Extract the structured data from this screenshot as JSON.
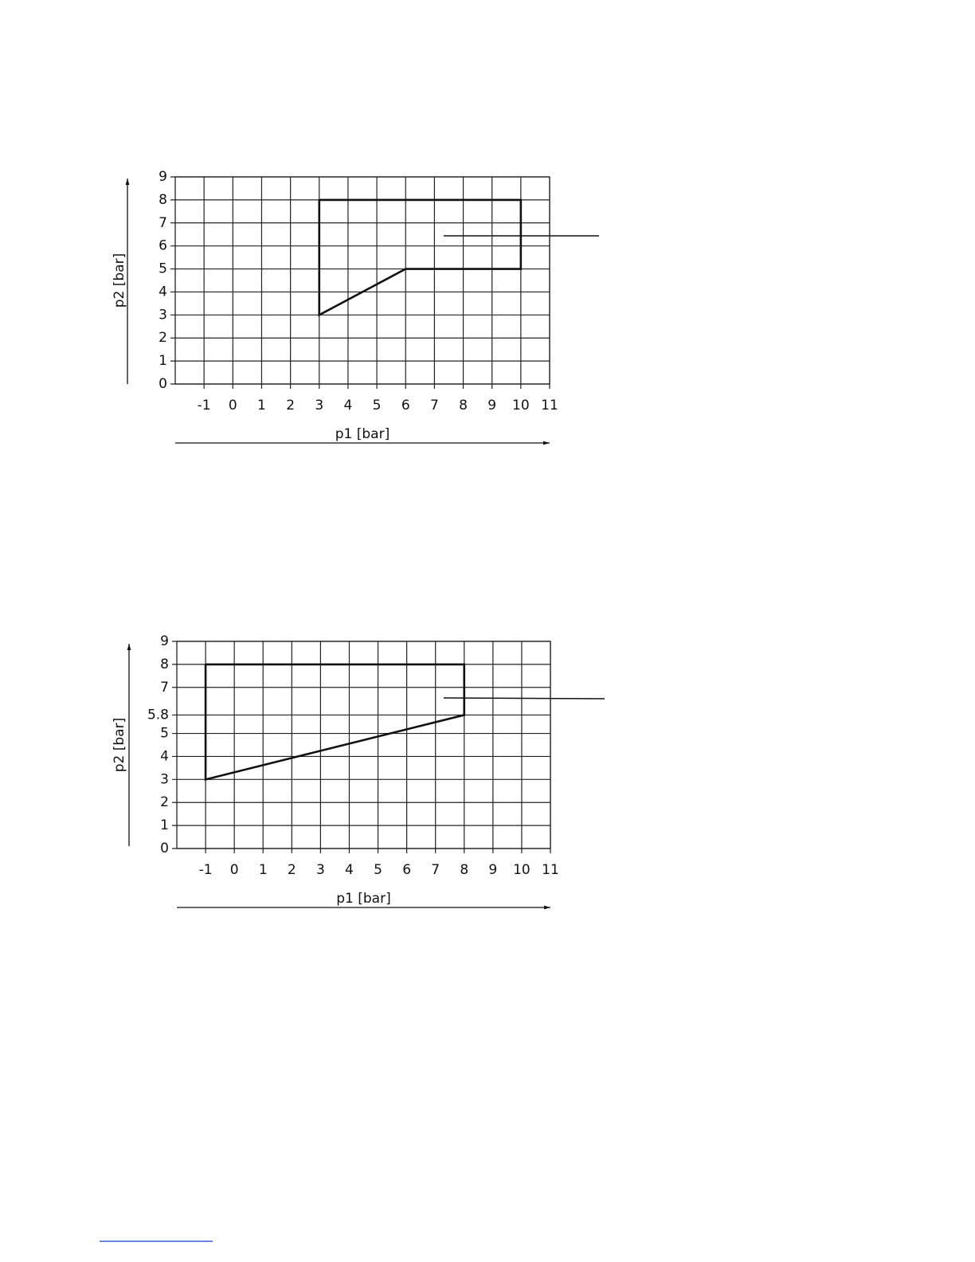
{
  "chart_data": [
    {
      "type": "line",
      "xlabel": "p1 [bar]",
      "ylabel": "p2 [bar]",
      "x": [
        3,
        10,
        10,
        6,
        3,
        3
      ],
      "values": [
        8,
        8,
        5,
        5,
        3,
        8
      ],
      "color": "#111111",
      "xlim": [
        -2,
        11
      ],
      "xticks": [
        -1,
        0,
        1,
        2,
        3,
        4,
        5,
        6,
        7,
        8,
        9,
        10,
        11
      ],
      "ylim": [
        0,
        9
      ],
      "yticks": [
        0,
        1,
        2,
        3,
        4,
        5,
        6,
        7,
        8,
        9
      ],
      "grid": true
    },
    {
      "type": "line",
      "xlabel": "p1 [bar]",
      "ylabel": "p2 [bar]",
      "x": [
        -1,
        8,
        8,
        -1,
        -1
      ],
      "values": [
        8,
        8,
        5.8,
        3,
        8
      ],
      "color": "#111111",
      "xlim": [
        -2,
        11
      ],
      "xticks": [
        -1,
        0,
        1,
        2,
        3,
        4,
        5,
        6,
        7,
        8,
        9,
        10,
        11
      ],
      "ylim": [
        0,
        9
      ],
      "yticks": [
        0,
        1,
        2,
        3,
        4,
        5,
        5.8,
        7,
        8,
        9
      ],
      "grid": true
    }
  ]
}
